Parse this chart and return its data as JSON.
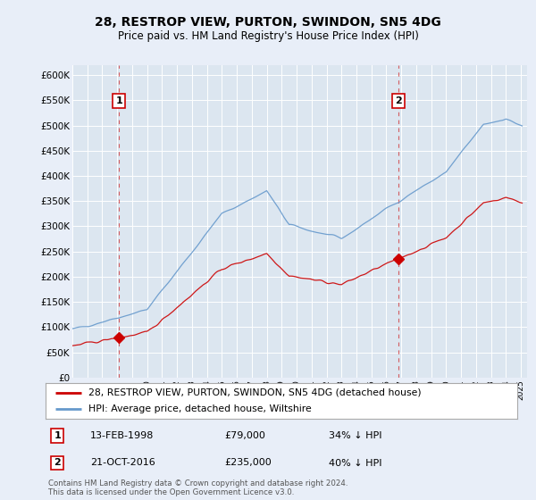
{
  "title": "28, RESTROP VIEW, PURTON, SWINDON, SN5 4DG",
  "subtitle": "Price paid vs. HM Land Registry's House Price Index (HPI)",
  "legend_label_red": "28, RESTROP VIEW, PURTON, SWINDON, SN5 4DG (detached house)",
  "legend_label_blue": "HPI: Average price, detached house, Wiltshire",
  "annotation1_date": "13-FEB-1998",
  "annotation1_price": "£79,000",
  "annotation1_hpi": "34% ↓ HPI",
  "annotation2_date": "21-OCT-2016",
  "annotation2_price": "£235,000",
  "annotation2_hpi": "40% ↓ HPI",
  "footnote": "Contains HM Land Registry data © Crown copyright and database right 2024.\nThis data is licensed under the Open Government Licence v3.0.",
  "bg_color": "#e8eef8",
  "plot_bg_color": "#dce6f0",
  "red_color": "#cc0000",
  "blue_color": "#6699cc",
  "ylim_min": 0,
  "ylim_max": 620000,
  "yticks": [
    0,
    50000,
    100000,
    150000,
    200000,
    250000,
    300000,
    350000,
    400000,
    450000,
    500000,
    550000,
    600000
  ],
  "ytick_labels": [
    "£0",
    "£50K",
    "£100K",
    "£150K",
    "£200K",
    "£250K",
    "£300K",
    "£350K",
    "£400K",
    "£450K",
    "£500K",
    "£550K",
    "£600K"
  ],
  "sale1_year": 1998.12,
  "sale1_price": 79000,
  "sale2_year": 2016.79,
  "sale2_price": 235000
}
